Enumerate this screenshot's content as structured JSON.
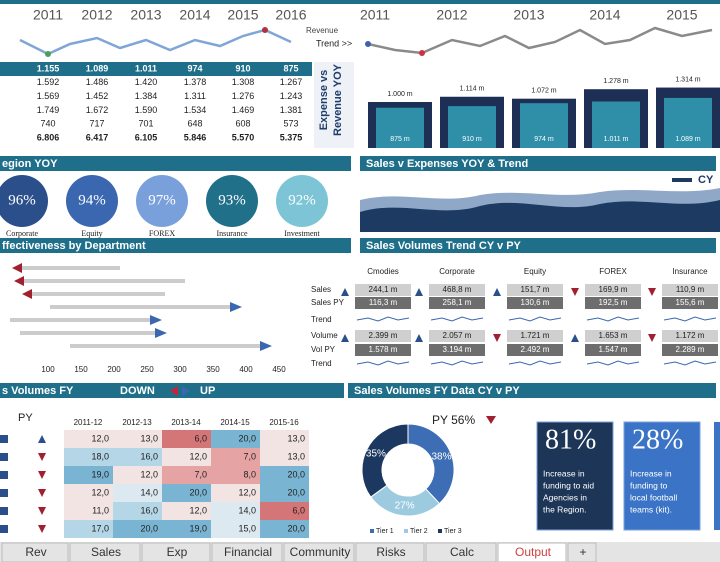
{
  "left_top": {
    "years": [
      "2011",
      "2012",
      "2013",
      "2014",
      "2015",
      "2016"
    ],
    "sparkline_label": "Revenue",
    "trend_label": "Trend >>",
    "rows": [
      [
        "1.155",
        "1.089",
        "1.011",
        "974",
        "910",
        "875"
      ],
      [
        "1.592",
        "1.486",
        "1.420",
        "1.378",
        "1.308",
        "1.267"
      ],
      [
        "1.569",
        "1.452",
        "1.384",
        "1.311",
        "1.276",
        "1.243"
      ],
      [
        "1.749",
        "1.672",
        "1.590",
        "1.534",
        "1.469",
        "1.381"
      ],
      [
        "740",
        "717",
        "701",
        "648",
        "608",
        "573"
      ],
      [
        "6.806",
        "6.417",
        "6.105",
        "5.846",
        "5.570",
        "5.375"
      ]
    ],
    "side_label": [
      "Expense vs",
      "Revenue YOY"
    ]
  },
  "right_top": {
    "years": [
      "2011",
      "2012",
      "2013",
      "2014",
      "2015"
    ],
    "bars": {
      "values": [
        1000,
        1114,
        1072,
        1278,
        1314
      ],
      "value_labels": [
        "1.000 m",
        "1.114 m",
        "1.072 m",
        "1.278 m",
        "1.314 m"
      ],
      "inner_values": [
        875,
        910,
        974,
        1011,
        1089
      ],
      "inner_labels": [
        "875 m",
        "910 m",
        "974 m",
        "1.011 m",
        "1.089 m"
      ]
    }
  },
  "sections": [
    "egion YOY",
    "Sales v Expenses YOY & Trend",
    "ffectiveness by Department",
    "Sales Volumes Trend CY v PY",
    "s Volumes FY",
    "Sales Volumes FY Data CY v PY"
  ],
  "down": "DOWN",
  "up": "UP",
  "region": [
    {
      "pct": "96%",
      "label": "Corporate"
    },
    {
      "pct": "94%",
      "label": "Equity"
    },
    {
      "pct": "97%",
      "label": "FOREX"
    },
    {
      "pct": "93%",
      "label": "Insurance"
    },
    {
      "pct": "92%",
      "label": "Investment"
    }
  ],
  "trend_legend": "CY",
  "gantt_axis": [
    "100",
    "150",
    "200",
    "250",
    "300",
    "350",
    "400",
    "450"
  ],
  "sales_table": {
    "columns": [
      "Cmodies",
      "Corporate",
      "Equity",
      "FOREX",
      "Insurance"
    ],
    "row_labels": [
      "Sales",
      "Sales PY",
      "Trend",
      "Volume",
      "Vol PY",
      "Trend"
    ],
    "sales": [
      "244,1 m",
      "468,8 m",
      "151,7 m",
      "169,9 m",
      "110,9 m"
    ],
    "sales_py": [
      "116,3 m",
      "258,1 m",
      "130,6 m",
      "192,5 m",
      "155,6 m"
    ],
    "volume": [
      "2.399 m",
      "2.057 m",
      "1.721 m",
      "1.653 m",
      "1.172 m"
    ],
    "vol_py": [
      "1.578 m",
      "3.194 m",
      "2.492 m",
      "1.547 m",
      "2.289 m"
    ]
  },
  "heat": {
    "py": "PY",
    "columns": [
      "2011-12",
      "2012-13",
      "2013-14",
      "2014-15",
      "2015-16"
    ],
    "values": [
      [
        12,
        13,
        6,
        20,
        13
      ],
      [
        18,
        16,
        12,
        7,
        13
      ],
      [
        19,
        12,
        7,
        8,
        20
      ],
      [
        12,
        14,
        20,
        12,
        20
      ],
      [
        11,
        16,
        12,
        14,
        6
      ],
      [
        17,
        20,
        19,
        15,
        20
      ]
    ],
    "value_labels": [
      [
        "12,0",
        "13,0",
        "6,0",
        "20,0",
        "13,0"
      ],
      [
        "18,0",
        "16,0",
        "12,0",
        "7,0",
        "13,0"
      ],
      [
        "19,0",
        "12,0",
        "7,0",
        "8,0",
        "20,0"
      ],
      [
        "12,0",
        "14,0",
        "20,0",
        "12,0",
        "20,0"
      ],
      [
        "11,0",
        "16,0",
        "12,0",
        "14,0",
        "6,0"
      ],
      [
        "17,0",
        "20,0",
        "19,0",
        "15,0",
        "20,0"
      ]
    ]
  },
  "donut": {
    "title": "PY 56%",
    "segments": [
      {
        "name": "Tier 1",
        "value": 38,
        "label": "38%",
        "color": "#3d6db4"
      },
      {
        "name": "Tier 2",
        "value": 27,
        "label": "27%",
        "color": "#9ccbe0"
      },
      {
        "name": "Tier 3",
        "value": 35,
        "label": "35%",
        "color": "#1c3760"
      }
    ]
  },
  "cards": [
    {
      "value": "81%",
      "lines": [
        "Increase in",
        "funding to aid",
        "Agencies in",
        "the Region."
      ]
    },
    {
      "value": "28%",
      "lines": [
        "Increase in",
        "funding to",
        "local football",
        "teams (kit)."
      ]
    }
  ],
  "tabs": [
    "Rev",
    "Sales",
    "Exp",
    "Financial",
    "Community",
    "Risks",
    "Calc",
    "Output",
    "+"
  ]
}
